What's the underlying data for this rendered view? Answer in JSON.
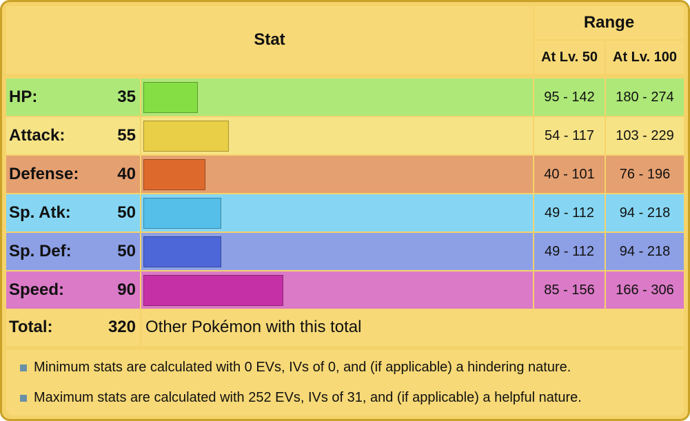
{
  "header": {
    "stat_label": "Stat",
    "range_label": "Range",
    "lv50_label": "At Lv. 50",
    "lv100_label": "At Lv. 100"
  },
  "max_base_stat": 255,
  "stats": [
    {
      "name": "HP:",
      "value": "35",
      "base": 35,
      "lv50": "95 - 142",
      "lv100": "180 - 274",
      "row_color": "#ade878",
      "bar_color": "#84de44",
      "bar_border": "#5e9a2f",
      "range_color": "#ade878"
    },
    {
      "name": "Attack:",
      "value": "55",
      "base": 55,
      "lv50": "54 - 117",
      "lv100": "103 - 229",
      "row_color": "#f6e386",
      "bar_color": "#e9cf47",
      "bar_border": "#a8922e",
      "range_color": "#f6e386"
    },
    {
      "name": "Defense:",
      "value": "40",
      "base": 40,
      "lv50": "40 - 101",
      "lv100": "76 - 196",
      "row_color": "#e5a071",
      "bar_color": "#dd6a2c",
      "bar_border": "#9a4a1e",
      "range_color": "#e5a071"
    },
    {
      "name": "Sp. Atk:",
      "value": "50",
      "base": 50,
      "lv50": "49 - 112",
      "lv100": "94 - 218",
      "row_color": "#86d6f3",
      "bar_color": "#55bfe9",
      "bar_border": "#3c86a4",
      "range_color": "#86d6f3"
    },
    {
      "name": "Sp. Def:",
      "value": "50",
      "base": 50,
      "lv50": "49 - 112",
      "lv100": "94 - 218",
      "row_color": "#8da0e6",
      "bar_color": "#4d67d9",
      "bar_border": "#34479a",
      "range_color": "#8da0e6"
    },
    {
      "name": "Speed:",
      "value": "90",
      "base": 90,
      "lv50": "85 - 156",
      "lv100": "166 - 306",
      "row_color": "#db7ac7",
      "bar_color": "#c630a6",
      "bar_border": "#8a2275",
      "range_color": "#db7ac7"
    }
  ],
  "total": {
    "label": "Total:",
    "value": "320",
    "link_text": "Other Pokémon with this total"
  },
  "notes": [
    "Minimum stats are calculated with 0 EVs, IVs of 0, and (if applicable) a hindering nature.",
    "Maximum stats are calculated with 252 EVs, IVs of 31, and (if applicable) a helpful nature."
  ],
  "colors": {
    "frame_border": "#c9a227",
    "frame_bg": "#f5d36b",
    "header_bg": "#f7d977",
    "bullet": "#6a8fa6"
  }
}
